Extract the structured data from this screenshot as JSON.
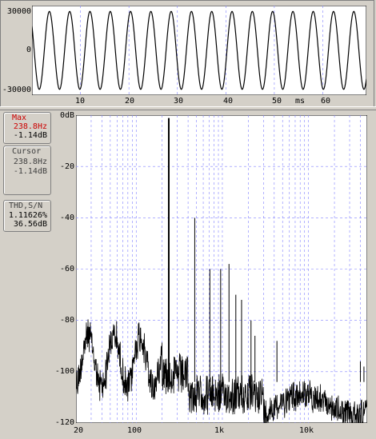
{
  "waveform": {
    "y_labels": [
      "30000",
      "0",
      "-30000"
    ],
    "x_labels": [
      "10",
      "20",
      "30",
      "40",
      "50",
      "60"
    ],
    "x_unit": "ms"
  },
  "spectrum": {
    "y_labels": [
      "0dB",
      "-20",
      "-40",
      "-60",
      "-80",
      "-100",
      "-120"
    ],
    "x_labels": [
      "20",
      "100",
      "1k",
      "10k"
    ],
    "x_unit": "Hz"
  },
  "readouts": {
    "max": {
      "title": "Max",
      "freq": "238.8Hz",
      "level": "-1.14dB"
    },
    "cursor": {
      "title": "Cursor",
      "freq": "238.8Hz",
      "level": "-1.14dB"
    },
    "thd": {
      "title": "THD,S/N",
      "thd": "1.11626%",
      "sn": "36.56dB"
    }
  },
  "colors": {
    "accent_red": "#cc0000",
    "grid": "#8080ff",
    "trace": "#000000"
  },
  "chart_data": [
    {
      "type": "line",
      "title": "",
      "xlabel": "ms",
      "ylabel": "",
      "xlim": [
        0,
        69
      ],
      "ylim": [
        -32768,
        32767
      ],
      "series": [
        {
          "frequency_hz": 238.8,
          "amplitude": 28500
        }
      ]
    },
    {
      "type": "line",
      "title": "",
      "xlabel": "Hz",
      "ylabel": "dB",
      "xscale": "log",
      "xlim": [
        20,
        48000
      ],
      "ylim": [
        -120,
        0
      ],
      "grid": true,
      "series": [
        {
          "name": "",
          "peaks": [
            {
              "x": 238.8,
              "y": -1.14
            },
            {
              "x": 478,
              "y": -40
            },
            {
              "x": 716,
              "y": -60
            },
            {
              "x": 955,
              "y": -60
            },
            {
              "x": 1194,
              "y": -58
            },
            {
              "x": 1433,
              "y": -70
            },
            {
              "x": 1671,
              "y": -72
            },
            {
              "x": 2150,
              "y": -80
            },
            {
              "x": 2390,
              "y": -86
            },
            {
              "x": 4300,
              "y": -88
            },
            {
              "x": 40000,
              "y": -96
            },
            {
              "x": 44000,
              "y": -98
            }
          ],
          "noise_floor_db": -110
        }
      ]
    }
  ]
}
